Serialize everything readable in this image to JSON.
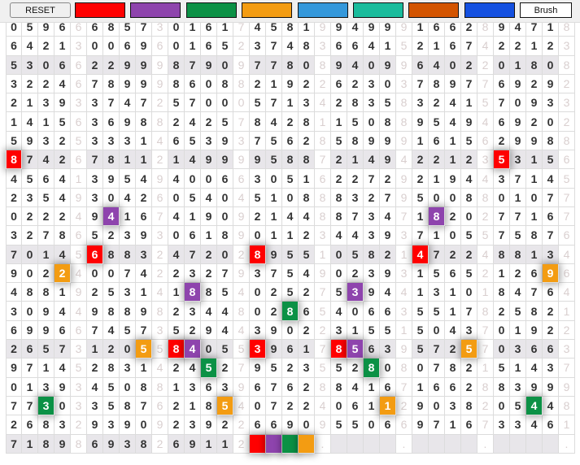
{
  "toolbar": {
    "reset_label": "RESET",
    "brush_label": "Brush",
    "swatches": [
      {
        "name": "red",
        "color": "#ff0000"
      },
      {
        "name": "purple",
        "color": "#8e44ad"
      },
      {
        "name": "green",
        "color": "#0b9145"
      },
      {
        "name": "orange",
        "color": "#f39c12"
      },
      {
        "name": "blue",
        "color": "#3498db"
      },
      {
        "name": "teal",
        "color": "#1abc9c"
      },
      {
        "name": "dark-orange",
        "color": "#d35400"
      },
      {
        "name": "royal-blue",
        "color": "#1450e0"
      }
    ]
  },
  "grid": {
    "rows": [
      "05966|68573|01617|45819|94999|16628|94718",
      "64213|00696|01652|37483|66415|21674|22123",
      "53066|22999|87909|77808|94099|64022|01808",
      "32246|78999|86088|21922|62303|78977|69292",
      "21393|37472|57000|57134|28358|32415|70933",
      "14156|36988|24257|84281|15088|95494|69202",
      "59325|33314|65393|75628|58999|16156|29988",
      "87426|78112|14999|95887|21494|22123|53156",
      "45641|39549|40066|30516|22729|21944|37145",
      "23549|30426|05404|51088|83279|50088|01077",
      "02224|94167|41909|21448|87347|18202|77167",
      "32786|52393|06189|01123|44393|71055|75876",
      "70145|68832|47202|89551|05821|47224|88134",
      "90224|00742|23279|37549|02393|15652|12696",
      "48819|25314|18854|02527|53944|13101|84764",
      "30944|98898|23448|02865|40663|55178|25821",
      "69966|74573|52944|39022|31551|50437|01922",
      "26573|12055|84055|39617|85639|57257|03663",
      "97145|28314|24527|95235|52808|07821|51437",
      "01393|45088|13639|67628|84167|16628|83999",
      "77303|35876|21854|07224|06112|90382|05448",
      "26832|93909|23922|66909|55066|97167|33461",
      "71898|69382|69112|    .|    .|    .|    ."
    ],
    "highlights": [
      {
        "row": 7,
        "col": 0,
        "color": "#ff0000"
      },
      {
        "row": 7,
        "col": 30,
        "color": "#ff0000"
      },
      {
        "row": 10,
        "col": 6,
        "color": "#8e44ad"
      },
      {
        "row": 10,
        "col": 26,
        "color": "#8e44ad"
      },
      {
        "row": 12,
        "col": 5,
        "color": "#ff0000"
      },
      {
        "row": 12,
        "col": 15,
        "color": "#ff0000"
      },
      {
        "row": 12,
        "col": 25,
        "color": "#ff0000"
      },
      {
        "row": 13,
        "col": 3,
        "color": "#f39c12"
      },
      {
        "row": 13,
        "col": 33,
        "color": "#f39c12"
      },
      {
        "row": 14,
        "col": 11,
        "color": "#8e44ad"
      },
      {
        "row": 14,
        "col": 21,
        "color": "#8e44ad"
      },
      {
        "row": 15,
        "col": 17,
        "color": "#0b9145"
      },
      {
        "row": 17,
        "col": 8,
        "color": "#f39c12"
      },
      {
        "row": 17,
        "col": 10,
        "color": "#ff0000"
      },
      {
        "row": 17,
        "col": 11,
        "color": "#8e44ad"
      },
      {
        "row": 17,
        "col": 15,
        "color": "#ff0000"
      },
      {
        "row": 17,
        "col": 20,
        "color": "#ff0000"
      },
      {
        "row": 17,
        "col": 21,
        "color": "#8e44ad"
      },
      {
        "row": 17,
        "col": 28,
        "color": "#f39c12"
      },
      {
        "row": 18,
        "col": 12,
        "color": "#0b9145"
      },
      {
        "row": 18,
        "col": 22,
        "color": "#0b9145"
      },
      {
        "row": 20,
        "col": 2,
        "color": "#0b9145"
      },
      {
        "row": 20,
        "col": 13,
        "color": "#f39c12"
      },
      {
        "row": 20,
        "col": 23,
        "color": "#f39c12"
      },
      {
        "row": 20,
        "col": 32,
        "color": "#0b9145"
      },
      {
        "row": 22,
        "col": 15,
        "color": "#ff0000"
      },
      {
        "row": 22,
        "col": 16,
        "color": "#8e44ad"
      },
      {
        "row": 22,
        "col": 17,
        "color": "#0b9145"
      },
      {
        "row": 22,
        "col": 18,
        "color": "#f39c12"
      }
    ]
  }
}
